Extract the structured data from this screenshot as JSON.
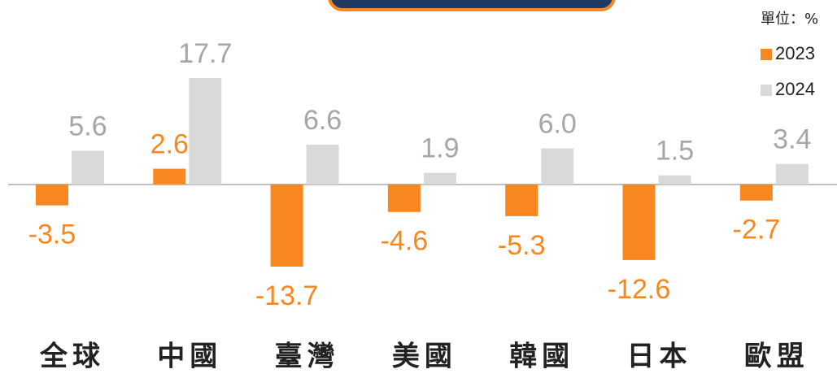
{
  "chart_data": {
    "type": "bar",
    "note": "單位：%",
    "categories": [
      "全球",
      "中國",
      "臺灣",
      "美國",
      "韓國",
      "日本",
      "歐盟"
    ],
    "series": [
      {
        "name": "2023",
        "color": "#f7871e",
        "values": [
          -3.5,
          2.6,
          -13.7,
          -4.6,
          -5.3,
          -12.6,
          -2.7
        ],
        "value_labels": [
          "-3.5",
          "2.6",
          "-13.7",
          "-4.6",
          "-5.3",
          "-12.6",
          "-2.7"
        ]
      },
      {
        "name": "2024",
        "color": "#d9d9d9",
        "values": [
          5.6,
          17.7,
          6.6,
          1.9,
          6.0,
          1.5,
          3.4
        ],
        "value_labels": [
          "5.6",
          "17.7",
          "6.6",
          "1.9",
          "6.0",
          "1.5",
          "3.4"
        ]
      }
    ]
  }
}
